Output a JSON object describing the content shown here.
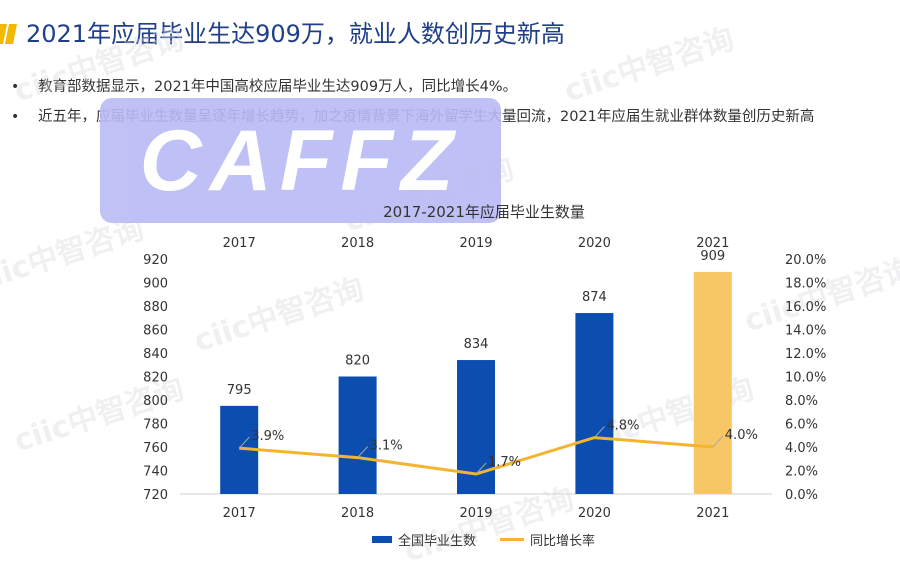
{
  "page": {
    "title": "2021年应届毕业生达909万，就业人数创历史新高",
    "bullets": [
      "教育部数据显示，2021年中国高校应届毕业生达909万人，同比增长4%。",
      "近五年，应届毕业生数量呈逐年增长趋势，加之疫情背景下海外留学生大量回流，2021年应届生就业群体数量创历史新高"
    ],
    "bullet_marker": "•",
    "watermark": "ciic中智咨询",
    "logo_text": "CAFFZ",
    "accent_color": "#f3b800"
  },
  "chart_data": {
    "type": "bar+line",
    "title": "2017-2021年应届毕业生数量",
    "categories": [
      "2017",
      "2018",
      "2019",
      "2020",
      "2021"
    ],
    "top_categories": [
      "2017",
      "2018",
      "2019",
      "2020",
      "2021"
    ],
    "series": [
      {
        "name": "全国毕业生数",
        "type": "bar",
        "axis": "left",
        "values": [
          795,
          820,
          834,
          874,
          909
        ],
        "labels": [
          "795",
          "820",
          "834",
          "874",
          "909"
        ],
        "colors": [
          "#0b4eaf",
          "#0b4eaf",
          "#0b4eaf",
          "#0b4eaf",
          "#f8c765"
        ]
      },
      {
        "name": "同比增长率",
        "type": "line",
        "axis": "right",
        "values": [
          3.9,
          3.1,
          1.7,
          4.8,
          4.0
        ],
        "labels": [
          "3.9%",
          "3.1%",
          "1.7%",
          "4.8%",
          "4.0%"
        ],
        "color": "#f3b530"
      }
    ],
    "left_axis": {
      "min": 720,
      "max": 920,
      "step": 20,
      "ticks": [
        "720",
        "740",
        "760",
        "780",
        "800",
        "820",
        "840",
        "860",
        "880",
        "900",
        "920"
      ]
    },
    "right_axis": {
      "min": 0,
      "max": 20,
      "step": 2,
      "ticks": [
        "0.0%",
        "2.0%",
        "4.0%",
        "6.0%",
        "8.0%",
        "10.0%",
        "12.0%",
        "14.0%",
        "16.0%",
        "18.0%",
        "20.0%"
      ]
    },
    "legend_position": "bottom",
    "grid": false
  }
}
